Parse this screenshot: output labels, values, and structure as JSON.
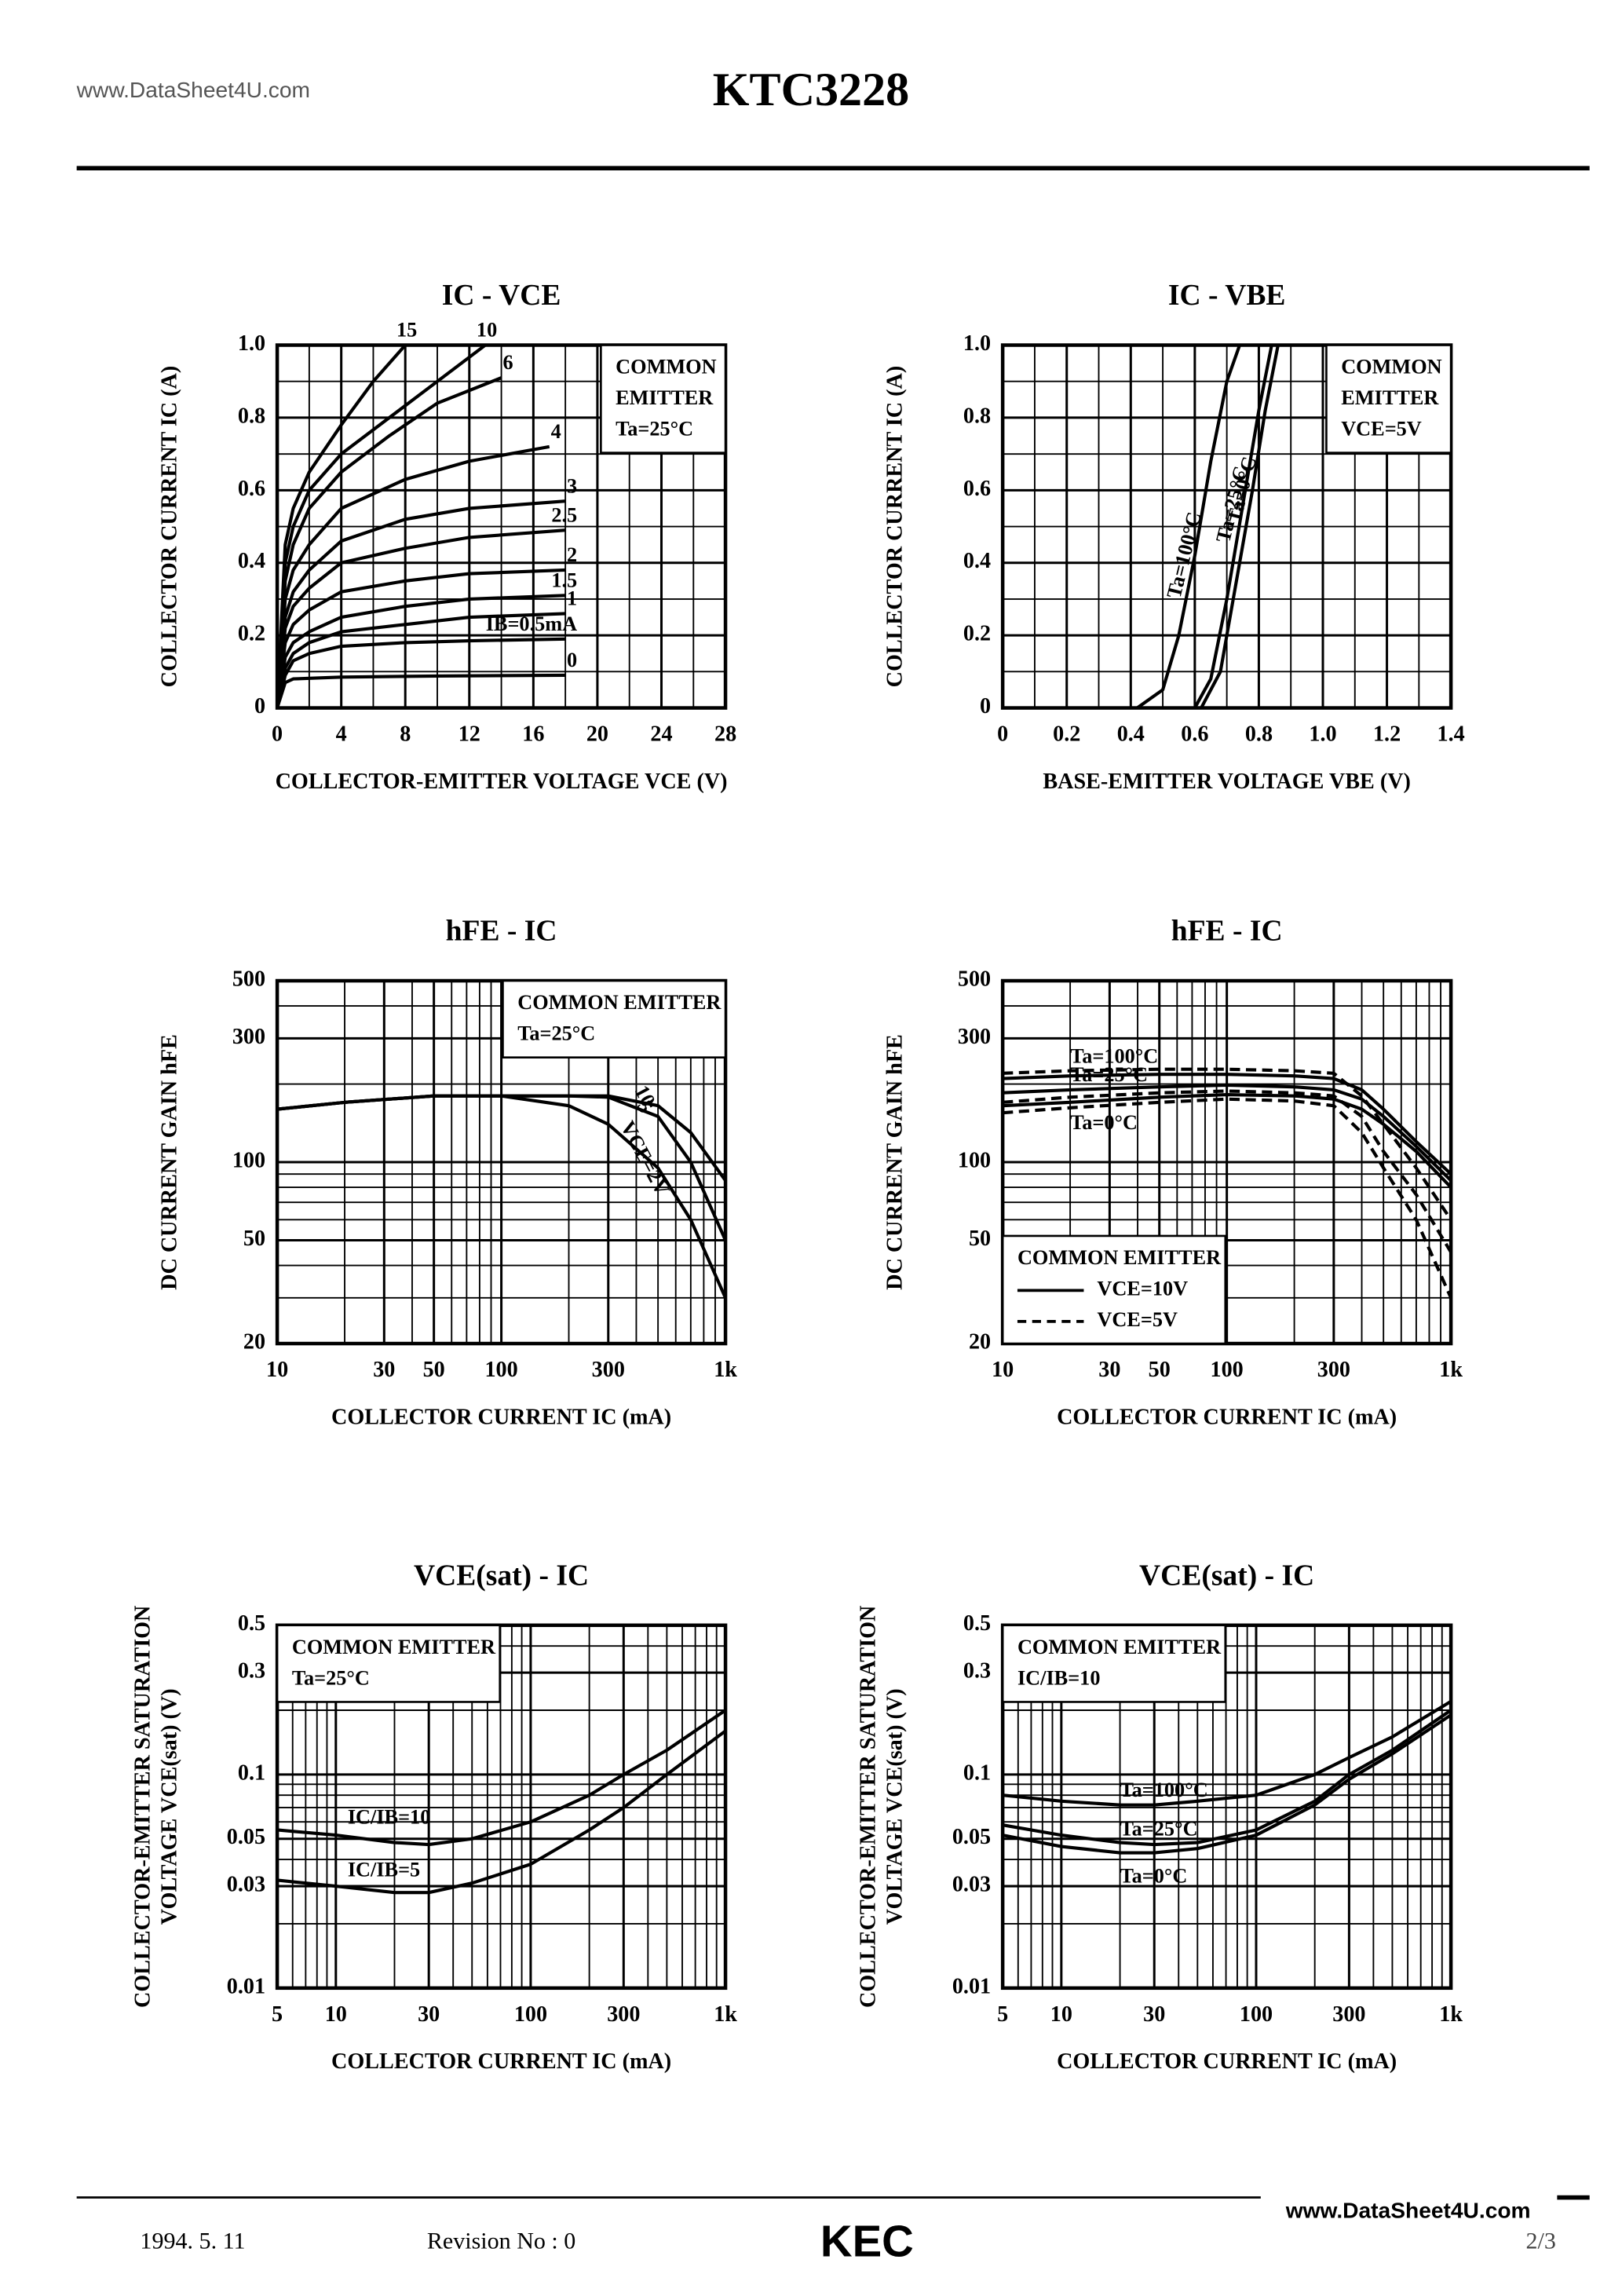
{
  "header": {
    "site": "www.DataSheet4U.com",
    "title": "KTC3228"
  },
  "chart_data": [
    {
      "type": "line",
      "title": "IC - VCE",
      "xlabel": "COLLECTOR-EMITTER VOLTAGE VCE (V)",
      "ylabel": [
        "COLLECTOR CURRENT IC (A)"
      ],
      "xscale": "linear",
      "yscale": "linear",
      "xlim": [
        0,
        28
      ],
      "xticks": [
        0,
        4,
        8,
        12,
        16,
        20,
        24,
        28
      ],
      "ylim": [
        0,
        1
      ],
      "yticks": [
        0,
        0.2,
        0.4,
        0.6,
        0.8,
        {
          "value": 1,
          "label": "1.0"
        }
      ],
      "grid": true,
      "legend": "upper right",
      "annotation": [
        "COMMON",
        "EMITTER",
        "Ta=25°C"
      ],
      "color": "#000000",
      "series": [
        {
          "name": "15",
          "x": [
            0,
            0.5,
            1,
            2,
            4,
            6,
            8
          ],
          "values": [
            0,
            0.45,
            0.55,
            0.65,
            0.78,
            0.9,
            1.0
          ]
        },
        {
          "name": "10",
          "x": [
            0,
            0.5,
            1,
            2,
            4,
            7,
            10,
            13
          ],
          "values": [
            0,
            0.4,
            0.5,
            0.6,
            0.7,
            0.8,
            0.9,
            1.0
          ]
        },
        {
          "name": "6",
          "x": [
            0,
            0.5,
            1,
            2,
            4,
            7,
            10,
            14
          ],
          "values": [
            0,
            0.35,
            0.45,
            0.55,
            0.65,
            0.75,
            0.84,
            0.91
          ]
        },
        {
          "name": "4",
          "x": [
            0,
            0.5,
            1,
            2,
            4,
            8,
            12,
            17
          ],
          "values": [
            0,
            0.3,
            0.38,
            0.45,
            0.55,
            0.63,
            0.68,
            0.72
          ]
        },
        {
          "name": "3",
          "x": [
            0,
            0.5,
            1,
            2,
            4,
            8,
            12,
            18
          ],
          "values": [
            0,
            0.25,
            0.32,
            0.38,
            0.46,
            0.52,
            0.55,
            0.57
          ]
        },
        {
          "name": "2.5",
          "x": [
            0,
            0.5,
            1,
            2,
            4,
            8,
            12,
            18
          ],
          "values": [
            0,
            0.22,
            0.28,
            0.33,
            0.4,
            0.44,
            0.47,
            0.49
          ]
        },
        {
          "name": "2",
          "x": [
            0,
            0.5,
            1,
            2,
            4,
            8,
            12,
            18
          ],
          "values": [
            0,
            0.18,
            0.23,
            0.27,
            0.32,
            0.35,
            0.37,
            0.38
          ]
        },
        {
          "name": "1.5",
          "x": [
            0,
            0.5,
            1,
            2,
            4,
            8,
            12,
            18
          ],
          "values": [
            0,
            0.14,
            0.18,
            0.21,
            0.25,
            0.28,
            0.3,
            0.31
          ]
        },
        {
          "name": "1",
          "x": [
            0,
            0.5,
            1,
            2,
            4,
            8,
            12,
            18
          ],
          "values": [
            0,
            0.11,
            0.15,
            0.18,
            0.21,
            0.23,
            0.25,
            0.26
          ]
        },
        {
          "name": "IB=0.5mA",
          "x": [
            0,
            0.5,
            1,
            2,
            4,
            8,
            12,
            18
          ],
          "values": [
            0,
            0.09,
            0.13,
            0.15,
            0.17,
            0.18,
            0.185,
            0.19
          ]
        },
        {
          "name": "0",
          "x": [
            0,
            0.5,
            1,
            4,
            10,
            18
          ],
          "values": [
            0,
            0.07,
            0.08,
            0.085,
            0.088,
            0.09
          ]
        }
      ]
    },
    {
      "type": "line",
      "title": "IC - VBE",
      "xlabel": "BASE-EMITTER VOLTAGE VBE (V)",
      "ylabel": [
        "COLLECTOR CURRENT IC (A)"
      ],
      "xscale": "linear",
      "yscale": "linear",
      "xlim": [
        0,
        1.4
      ],
      "xticks": [
        0,
        0.2,
        0.4,
        0.6,
        0.8,
        {
          "value": 1,
          "label": "1.0"
        },
        1.2,
        1.4
      ],
      "ylim": [
        0,
        1
      ],
      "yticks": [
        0,
        0.2,
        0.4,
        0.6,
        0.8,
        {
          "value": 1,
          "label": "1.0"
        }
      ],
      "grid": true,
      "legend": "upper right",
      "annotation": [
        "COMMON",
        "EMITTER",
        "VCE=5V"
      ],
      "color": "#000000",
      "series": [
        {
          "name": "Ta=100°C",
          "x": [
            0.42,
            0.5,
            0.55,
            0.6,
            0.65,
            0.7,
            0.74
          ],
          "values": [
            0,
            0.05,
            0.2,
            0.42,
            0.68,
            0.9,
            1.0
          ]
        },
        {
          "name": "Ta=25°C",
          "x": [
            0.6,
            0.65,
            0.7,
            0.75,
            0.8,
            0.84
          ],
          "values": [
            0,
            0.08,
            0.3,
            0.56,
            0.82,
            1.0
          ]
        },
        {
          "name": "Ta=0°C",
          "x": [
            0.62,
            0.68,
            0.72,
            0.78,
            0.82,
            0.86
          ],
          "values": [
            0,
            0.1,
            0.3,
            0.6,
            0.82,
            1.0
          ]
        }
      ]
    },
    {
      "type": "line",
      "title": "hFE - IC",
      "xlabel": "COLLECTOR CURRENT IC (mA)",
      "ylabel": [
        "DC CURRENT GAIN hFE"
      ],
      "xscale": "log",
      "yscale": "log",
      "xlim": [
        10,
        1000
      ],
      "xticks": [
        10,
        30,
        50,
        100,
        300,
        {
          "value": 1000,
          "label": "1k"
        }
      ],
      "ylim": [
        20,
        500
      ],
      "yticks": [
        20,
        50,
        100,
        300,
        500
      ],
      "grid": true,
      "legend": "upper right",
      "annotation": [
        "COMMON EMITTER",
        "Ta=25°C"
      ],
      "color": "#000000",
      "x": [
        10,
        20,
        50,
        100,
        200,
        300,
        500,
        700,
        1000
      ],
      "series": [
        {
          "name": "VCE=2V",
          "values": [
            160,
            170,
            180,
            180,
            165,
            140,
            95,
            60,
            30
          ]
        },
        {
          "name": "5",
          "values": [
            160,
            170,
            180,
            180,
            180,
            178,
            150,
            100,
            50
          ]
        },
        {
          "name": "10",
          "values": [
            160,
            170,
            180,
            180,
            180,
            180,
            165,
            130,
            85
          ]
        }
      ]
    },
    {
      "type": "line",
      "title": "hFE - IC",
      "xlabel": "COLLECTOR CURRENT IC (mA)",
      "ylabel": [
        "DC CURRENT GAIN hFE"
      ],
      "xscale": "log",
      "yscale": "log",
      "xlim": [
        10,
        1000
      ],
      "xticks": [
        10,
        30,
        50,
        100,
        300,
        {
          "value": 1000,
          "label": "1k"
        }
      ],
      "ylim": [
        20,
        500
      ],
      "yticks": [
        20,
        50,
        100,
        300,
        500
      ],
      "grid": true,
      "legend": "lower left",
      "annotation": [
        "COMMON EMITTER"
      ],
      "line_styles": [
        {
          "label": "VCE=10V",
          "dash": false
        },
        {
          "label": "VCE=5V",
          "dash": true
        }
      ],
      "color": "#000000",
      "x": [
        10,
        20,
        50,
        100,
        200,
        300,
        400,
        500,
        700,
        1000
      ],
      "series": [
        {
          "name": "Ta=100°C",
          "values": [
            210,
            215,
            218,
            218,
            215,
            210,
            190,
            160,
            120,
            90
          ],
          "values_dashed": [
            220,
            225,
            228,
            228,
            225,
            220,
            180,
            140,
            95,
            60
          ]
        },
        {
          "name": "Ta=25°C",
          "values": [
            185,
            190,
            195,
            198,
            195,
            190,
            175,
            150,
            115,
            85
          ],
          "values_dashed": [
            170,
            178,
            185,
            188,
            185,
            180,
            150,
            110,
            75,
            45
          ]
        },
        {
          "name": "Ta=0°C",
          "values": [
            165,
            170,
            178,
            182,
            180,
            175,
            160,
            140,
            110,
            80
          ],
          "values_dashed": [
            155,
            162,
            170,
            175,
            172,
            165,
            130,
            95,
            60,
            30
          ]
        }
      ]
    },
    {
      "type": "line",
      "title": "VCE(sat) - IC",
      "xlabel": "COLLECTOR CURRENT IC (mA)",
      "ylabel": [
        "COLLECTOR-EMITTER SATURATION",
        "VOLTAGE VCE(sat) (V)"
      ],
      "xscale": "log",
      "yscale": "log",
      "xlim": [
        5,
        1000
      ],
      "xticks": [
        5,
        10,
        30,
        100,
        300,
        {
          "value": 1000,
          "label": "1k"
        }
      ],
      "ylim": [
        0.01,
        0.5
      ],
      "yticks": [
        0.01,
        0.03,
        0.05,
        0.1,
        0.3,
        0.5
      ],
      "grid": true,
      "legend": "upper left",
      "annotation": [
        "COMMON EMITTER",
        "Ta=25°C"
      ],
      "color": "#000000",
      "x": [
        5,
        10,
        20,
        30,
        50,
        100,
        200,
        300,
        500,
        1000
      ],
      "series": [
        {
          "name": "IC/IB=10",
          "values": [
            0.055,
            0.052,
            0.048,
            0.047,
            0.05,
            0.06,
            0.08,
            0.1,
            0.13,
            0.2
          ]
        },
        {
          "name": "IC/IB=5",
          "values": [
            0.032,
            0.03,
            0.028,
            0.028,
            0.031,
            0.038,
            0.055,
            0.07,
            0.1,
            0.16
          ]
        }
      ]
    },
    {
      "type": "line",
      "title": "VCE(sat) - IC",
      "xlabel": "COLLECTOR CURRENT IC (mA)",
      "ylabel": [
        "COLLECTOR-EMITTER SATURATION",
        "VOLTAGE VCE(sat) (V)"
      ],
      "xscale": "log",
      "yscale": "log",
      "xlim": [
        5,
        1000
      ],
      "xticks": [
        5,
        10,
        30,
        100,
        300,
        {
          "value": 1000,
          "label": "1k"
        }
      ],
      "ylim": [
        0.01,
        0.5
      ],
      "yticks": [
        0.01,
        0.03,
        0.05,
        0.1,
        0.3,
        0.5
      ],
      "grid": true,
      "legend": "upper left",
      "annotation": [
        "COMMON EMITTER",
        "IC/IB=10"
      ],
      "color": "#000000",
      "x": [
        5,
        10,
        20,
        30,
        50,
        100,
        200,
        300,
        500,
        1000
      ],
      "series": [
        {
          "name": "Ta=100°C",
          "values": [
            0.08,
            0.075,
            0.072,
            0.072,
            0.075,
            0.08,
            0.1,
            0.12,
            0.15,
            0.22
          ]
        },
        {
          "name": "Ta=25°C",
          "values": [
            0.058,
            0.052,
            0.048,
            0.047,
            0.048,
            0.055,
            0.075,
            0.1,
            0.13,
            0.2
          ]
        },
        {
          "name": "Ta=0°C",
          "values": [
            0.052,
            0.046,
            0.043,
            0.043,
            0.045,
            0.052,
            0.072,
            0.095,
            0.125,
            0.19
          ]
        }
      ]
    }
  ],
  "footer": {
    "date": "1994.  5. 11",
    "revision": "Revision No : 0",
    "logo": "KEC",
    "page": "2/3",
    "site": "www.DataSheet4U.com"
  }
}
